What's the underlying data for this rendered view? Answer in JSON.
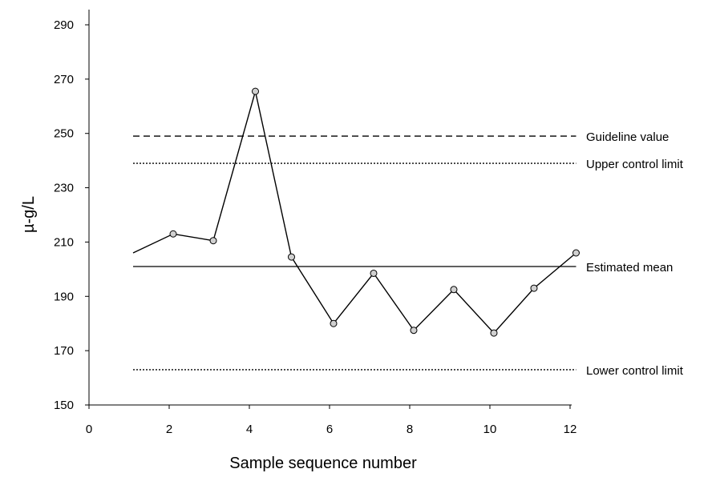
{
  "chart_data": {
    "type": "line",
    "xlabel": "Sample sequence number",
    "ylabel": "µ-g/L",
    "xlim": [
      0,
      12
    ],
    "ylim": [
      150,
      295
    ],
    "xticks": [
      "0",
      "2",
      "4",
      "6",
      "8",
      "10",
      "12"
    ],
    "yticks": [
      "150",
      "170",
      "190",
      "210",
      "230",
      "250",
      "270",
      "290"
    ],
    "grid": false,
    "series": [
      {
        "x": [
          1.1,
          2.1,
          3.1,
          4.15,
          5.05,
          6.1,
          7.1,
          8.1,
          9.1,
          10.1,
          11.1,
          12.15
        ],
        "y": [
          206,
          213,
          210.5,
          265.5,
          204.5,
          180,
          198.5,
          177.5,
          192.5,
          176.5,
          193,
          206
        ],
        "markers": [
          false,
          true,
          true,
          true,
          true,
          true,
          true,
          true,
          true,
          true,
          true,
          true
        ]
      }
    ],
    "reference_lines": [
      {
        "label": "Guideline value",
        "y": 249,
        "style": "dashed"
      },
      {
        "label": "Upper control limit",
        "y": 239,
        "style": "dotted"
      },
      {
        "label": "Estimated mean",
        "y": 201,
        "style": "solid"
      },
      {
        "label": "Lower control limit",
        "y": 163,
        "style": "dotted"
      }
    ],
    "colors": {
      "line": "#000000",
      "marker_fill": "#d0d0d0"
    }
  }
}
